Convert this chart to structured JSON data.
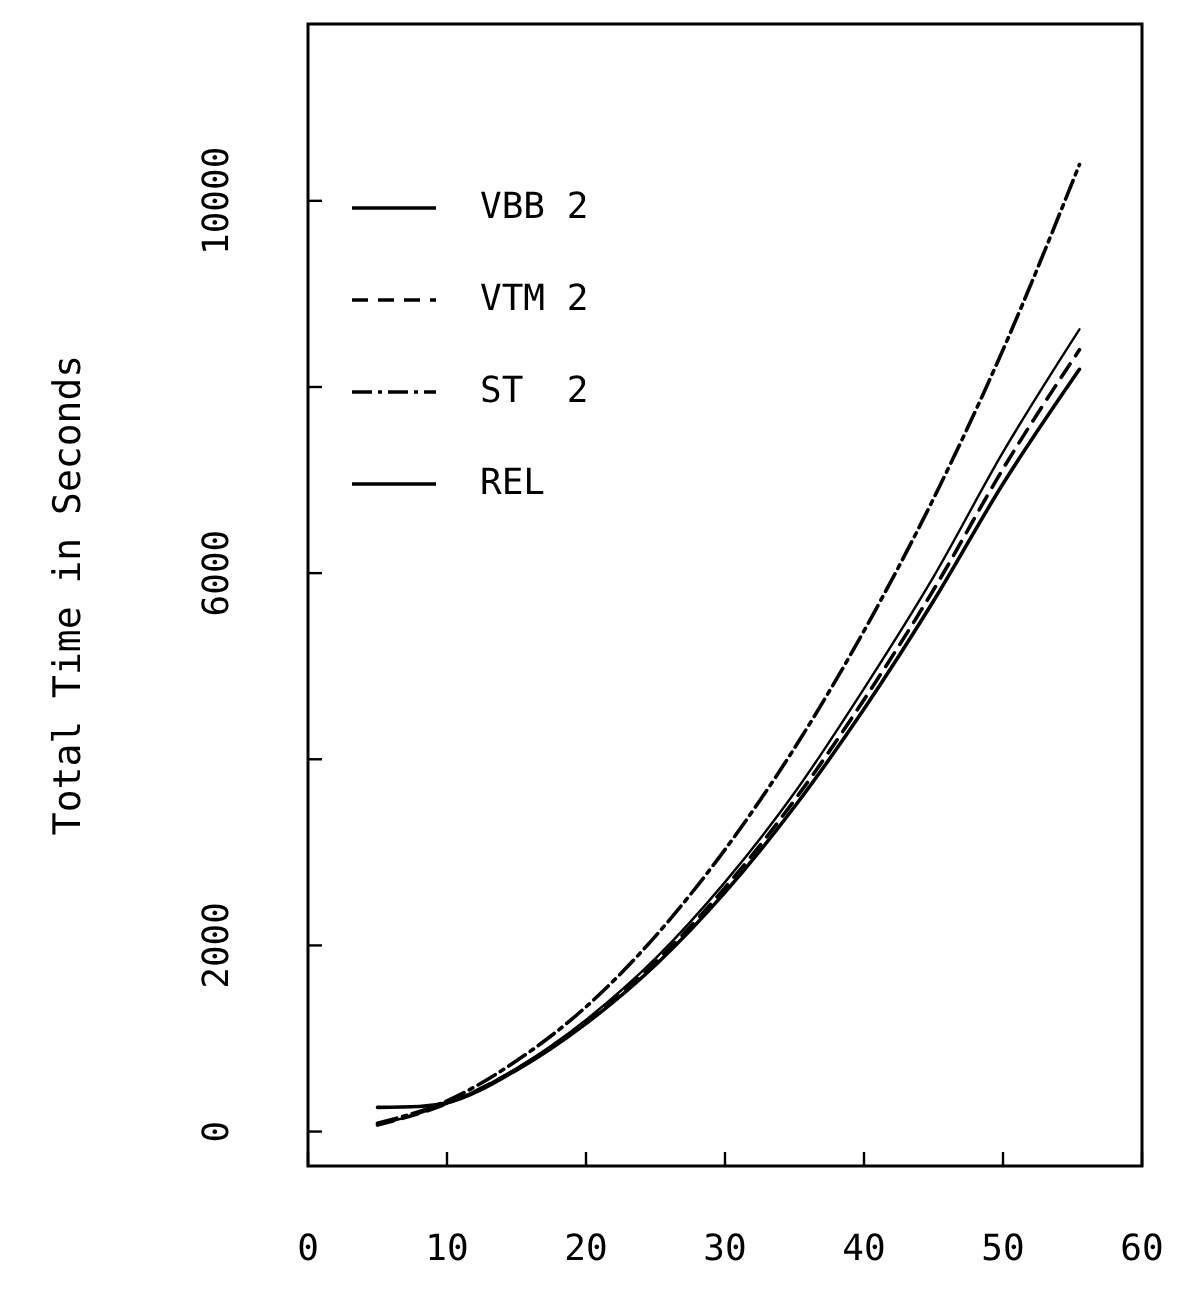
{
  "chart_data": {
    "type": "line",
    "ylabel": "Total Time in Seconds",
    "xlim": [
      0,
      60
    ],
    "xticks": [
      0,
      10,
      20,
      30,
      40,
      50,
      60
    ],
    "ylim": [
      -370,
      11900
    ],
    "yticks": [
      0,
      2000,
      {
        "value": 4000,
        "label": null
      },
      6000,
      {
        "value": 8000,
        "label": null
      },
      10000
    ],
    "grid": false,
    "legend": "top left",
    "series": [
      {
        "name": "VBB 2",
        "color": "#000000",
        "line_style": "solid",
        "x": [
          5,
          10,
          15,
          20,
          25,
          30,
          35,
          40,
          45,
          50,
          55.5
        ],
        "values": [
          70,
          300,
          680,
          1200,
          1860,
          2680,
          3640,
          4760,
          5960,
          7300,
          8620
        ]
      },
      {
        "name": "VTM 2",
        "color": "#000000",
        "line_style": "dashed",
        "x": [
          5,
          10,
          15,
          20,
          25,
          30,
          35,
          40,
          45,
          50,
          55.5
        ],
        "values": [
          70,
          300,
          670,
          1180,
          1820,
          2620,
          3560,
          4640,
          5820,
          7120,
          8400
        ]
      },
      {
        "name": "ST  2",
        "color": "#000000",
        "line_style": "dotted",
        "x": [
          5,
          10,
          15,
          20,
          25,
          30,
          35,
          40,
          45,
          50,
          55.5
        ],
        "values": [
          90,
          330,
          760,
          1340,
          2100,
          3030,
          4120,
          5380,
          6800,
          8400,
          10390
        ]
      },
      {
        "name": "REL",
        "color": "#000000",
        "line_style": "solid",
        "x": [
          5,
          8,
          10,
          15,
          20,
          25,
          30,
          35,
          40,
          45,
          50,
          55.5
        ],
        "values": [
          260,
          270,
          310,
          660,
          1160,
          1790,
          2570,
          3490,
          4540,
          5700,
          6960,
          8190
        ]
      }
    ]
  }
}
